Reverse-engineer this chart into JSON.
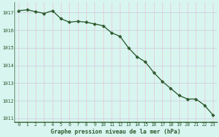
{
  "x": [
    0,
    1,
    2,
    3,
    4,
    5,
    6,
    7,
    8,
    9,
    10,
    11,
    12,
    13,
    14,
    15,
    16,
    17,
    18,
    19,
    20,
    21,
    22,
    23
  ],
  "y": [
    1017.1,
    1017.15,
    1017.05,
    1016.95,
    1017.1,
    1016.65,
    1016.45,
    1016.5,
    1016.45,
    1016.35,
    1016.25,
    1015.85,
    1015.65,
    1015.0,
    1014.5,
    1014.2,
    1013.6,
    1013.1,
    1012.7,
    1012.3,
    1012.1,
    1012.1,
    1011.75,
    1011.2
  ],
  "ylim": [
    1010.8,
    1017.6
  ],
  "yticks": [
    1011,
    1012,
    1013,
    1014,
    1015,
    1016,
    1017
  ],
  "xticks": [
    0,
    1,
    2,
    3,
    4,
    5,
    6,
    7,
    8,
    9,
    10,
    11,
    12,
    13,
    14,
    15,
    16,
    17,
    18,
    19,
    20,
    21,
    22,
    23
  ],
  "line_color": "#2d5a2d",
  "marker_color": "#2d5a2d",
  "bg_color": "#d8f5f0",
  "plot_bg_color": "#d8f5f0",
  "grid_color": "#c8c8d8",
  "grid_color2": "#f0c0c8",
  "xlabel": "Graphe pression niveau de la mer (hPa)",
  "xlabel_color": "#2d5a2d",
  "tick_color": "#2d5a2d",
  "markersize": 2.5,
  "linewidth": 1.0
}
